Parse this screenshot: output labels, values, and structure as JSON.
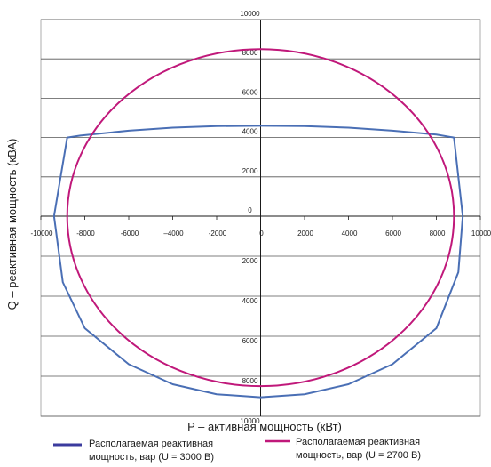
{
  "chart_data": {
    "type": "line",
    "xlabel": "P – активная мощность (кВт)",
    "ylabel": "Q – реактивная мощность (кВА)",
    "xlim": [
      -10000,
      10000
    ],
    "ylim": [
      -10000,
      10000
    ],
    "grid": "horizontal",
    "x_ticks": [
      "-10000",
      "-8000",
      "-6000",
      "–4000",
      "-2000",
      "0",
      "2000",
      "4000",
      "6000",
      "8000",
      "10000"
    ],
    "y_ticks_upper": [
      "0",
      "2000",
      "4000",
      "6000",
      "8000",
      "10000"
    ],
    "y_ticks_lower": [
      "2000",
      "4000",
      "6000",
      "8000",
      "10000"
    ],
    "legend_position": "bottom",
    "series": [
      {
        "name_line1": "Располагаемая реактивная",
        "name_line2": "мощность, вар (U = 3000 В)",
        "color": "#4a6fb5",
        "x": [
          -8800,
          -8200,
          -6000,
          -4000,
          -2000,
          0,
          2000,
          4000,
          6000,
          8000,
          8800,
          9200,
          9000,
          8000,
          6000,
          4000,
          2000,
          0,
          -2000,
          -4000,
          -6000,
          -8000,
          -9000,
          -9400,
          -8800
        ],
        "y": [
          4000,
          4100,
          4350,
          4500,
          4580,
          4600,
          4580,
          4500,
          4350,
          4150,
          4000,
          0,
          -2800,
          -5600,
          -7400,
          -8400,
          -8900,
          -9050,
          -8900,
          -8400,
          -7400,
          -5600,
          -3300,
          0,
          4000
        ]
      },
      {
        "name_line1": "Располагаемая реактивная",
        "name_line2": "мощность, вар (U = 2700 В)",
        "color": "#c0187a",
        "center": [
          0,
          0
        ],
        "rx": 8800,
        "ry": 8500
      }
    ]
  }
}
